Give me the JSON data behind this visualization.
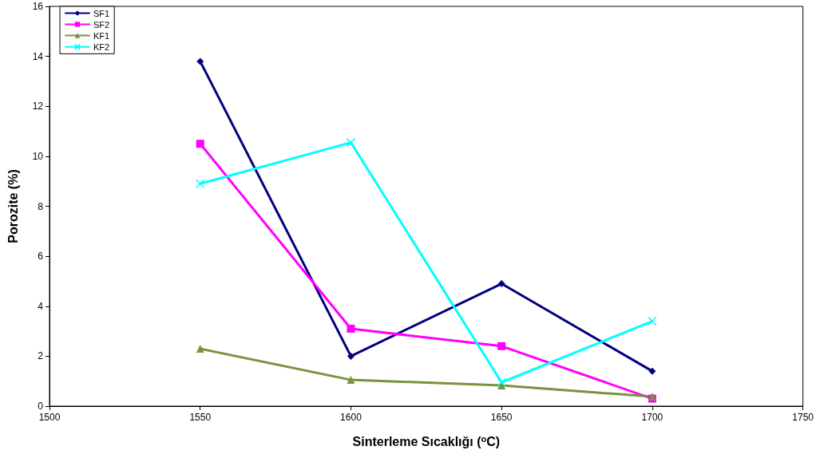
{
  "chart_data": {
    "type": "line",
    "xlabel": "Sinterleme Sıcaklığı ($^{o}$C)",
    "ylabel": "Porozite (%)",
    "x": [
      1550,
      1600,
      1650,
      1700
    ],
    "series": [
      {
        "name": "SF1",
        "color": "#000080",
        "marker": "diamond",
        "values": [
          13.8,
          2.0,
          4.9,
          1.4
        ]
      },
      {
        "name": "SF2",
        "color": "#ff00ff",
        "marker": "square",
        "values": [
          10.5,
          3.1,
          2.4,
          0.3
        ]
      },
      {
        "name": "KF1",
        "color": "#77933c",
        "marker": "triangle",
        "values": [
          2.3,
          1.05,
          0.83,
          0.38
        ]
      },
      {
        "name": "KF2",
        "color": "#00ffff",
        "marker": "cross",
        "values": [
          8.9,
          10.55,
          0.95,
          3.4
        ]
      }
    ],
    "xlim": [
      1500,
      1750
    ],
    "xticks": [
      1500,
      1550,
      1600,
      1650,
      1700,
      1750
    ],
    "ylim": [
      0,
      16
    ],
    "yticks": [
      0,
      2,
      4,
      6,
      8,
      10,
      12,
      14,
      16
    ],
    "grid": false,
    "legend": "top left",
    "line_style": "solid"
  }
}
